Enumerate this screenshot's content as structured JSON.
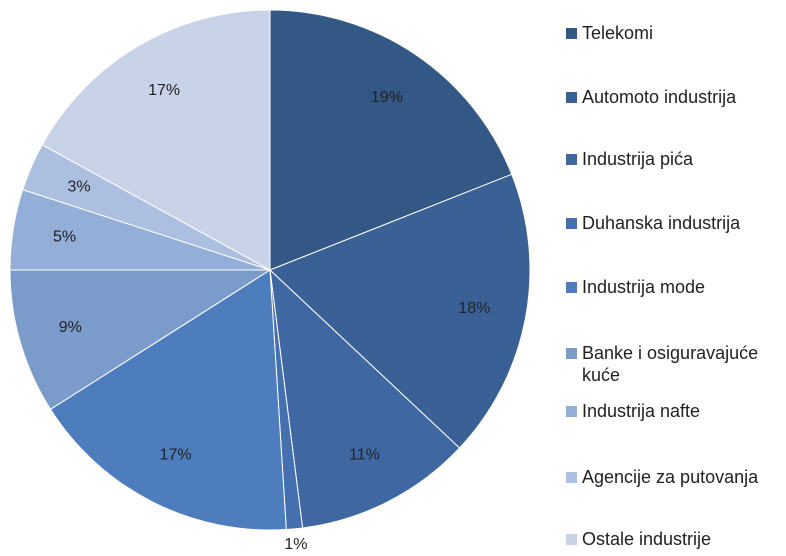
{
  "chart_data": {
    "type": "pie",
    "categories": [
      "Telekomi",
      "Automoto industrija",
      "Industrija pića",
      "Duhanska industrija",
      "Industrija mode",
      "Banke i osiguravajuće kuće",
      "Industrija nafte",
      "Agencije za putovanja",
      "Ostale industrije"
    ],
    "values": [
      19,
      18,
      11,
      1,
      17,
      9,
      5,
      3,
      17
    ],
    "value_labels": [
      "19%",
      "18%",
      "11%",
      "1%",
      "17%",
      "9%",
      "5%",
      "3%",
      "17%"
    ],
    "colors": [
      "#335886",
      "#3a6196",
      "#3f68a2",
      "#4570b0",
      "#4d7dbd",
      "#7b9bcb",
      "#94afd7",
      "#adbfe0",
      "#c9d3e8"
    ],
    "legend": "right"
  }
}
